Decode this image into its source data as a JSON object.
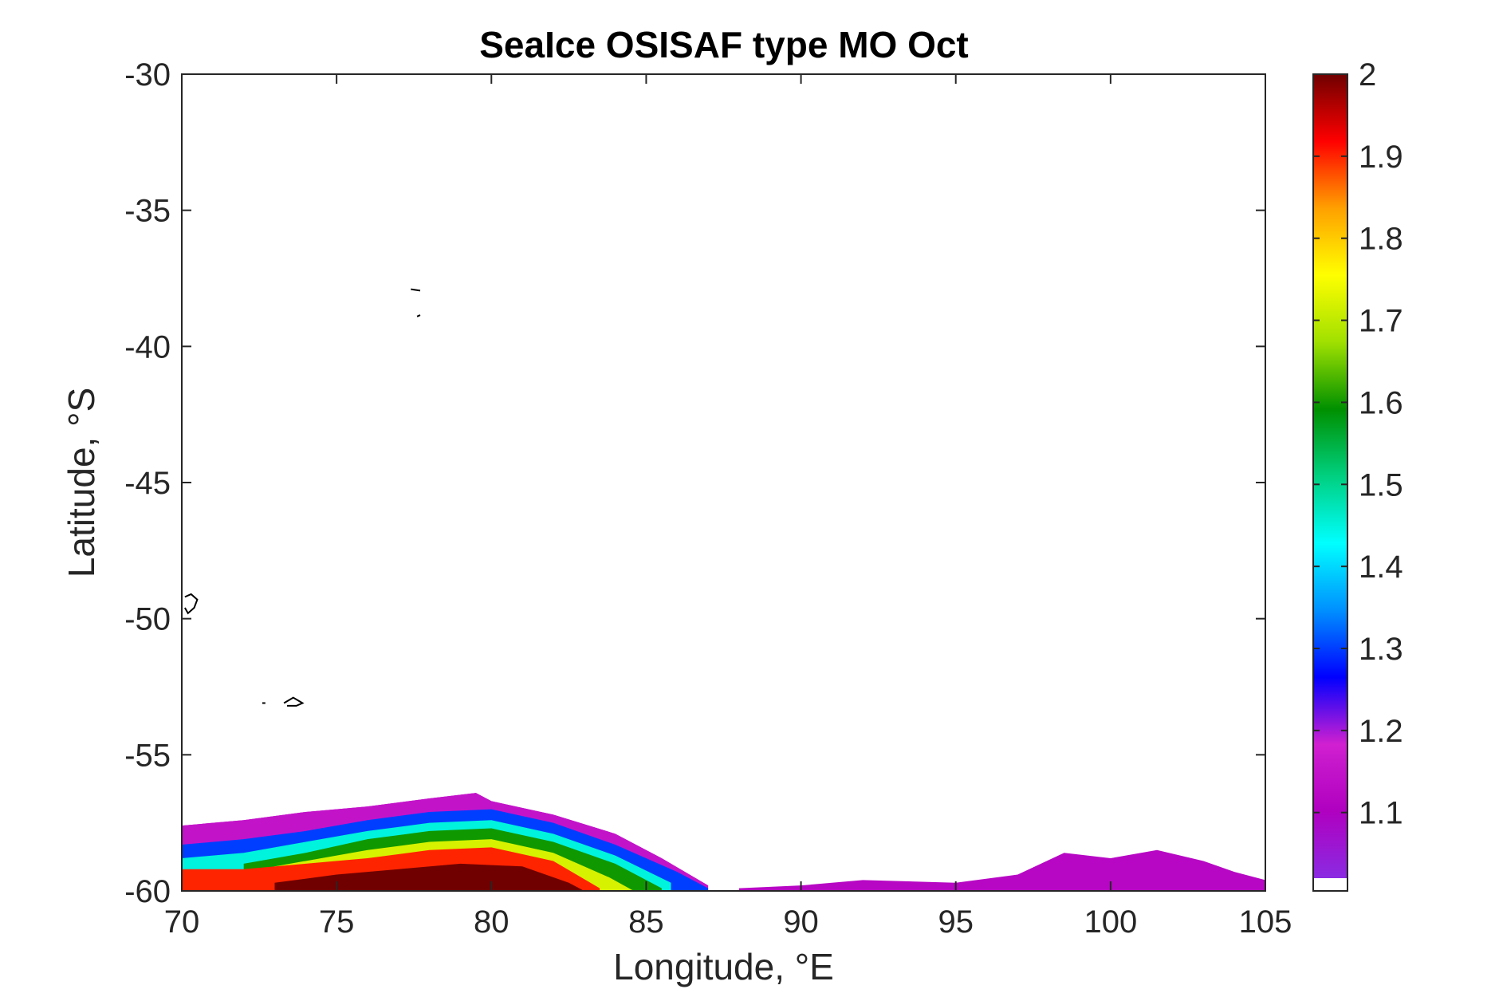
{
  "chart_data": {
    "type": "heatmap",
    "title": "SeaIce OSISAF type MO Oct",
    "xlabel": "Longitude, °E",
    "ylabel": "Latitude, °S",
    "xlim": [
      70,
      105
    ],
    "ylim": [
      -60,
      -30
    ],
    "x_ticks": [
      70,
      75,
      80,
      85,
      90,
      95,
      100,
      105
    ],
    "y_ticks": [
      -30,
      -35,
      -40,
      -45,
      -50,
      -55,
      -60
    ],
    "x_tick_labels": [
      "70",
      "75",
      "80",
      "85",
      "90",
      "95",
      "100",
      "105"
    ],
    "y_tick_labels": [
      "-30",
      "-35",
      "-40",
      "-45",
      "-50",
      "-55",
      "-60"
    ],
    "grid": false,
    "colorbar": {
      "range": [
        1.02,
        2.0
      ],
      "ticks": [
        1.1,
        1.2,
        1.3,
        1.4,
        1.5,
        1.6,
        1.7,
        1.8,
        1.9,
        2.0
      ],
      "tick_labels": [
        "1.1",
        "1.2",
        "1.3",
        "1.4",
        "1.5",
        "1.6",
        "1.7",
        "1.8",
        "1.9",
        "2"
      ],
      "colormap": [
        "#8a2be2",
        "#b000c0",
        "#d020d0",
        "#0000ff",
        "#0090ff",
        "#00ffff",
        "#00d080",
        "#009000",
        "#a0e000",
        "#ffff00",
        "#ffa000",
        "#ff0000",
        "#700000"
      ],
      "no_data_color": "#ffffff"
    },
    "ice_edges": [
      {
        "name": "",
        "points": [
          [
            70,
            -57.6
          ],
          [
            72,
            -57.4
          ],
          [
            74,
            -57.1
          ],
          [
            76,
            -56.9
          ],
          [
            78,
            -56.6
          ],
          [
            79.5,
            -56.4
          ],
          [
            80,
            -56.7
          ],
          [
            82,
            -57.2
          ],
          [
            84,
            -57.9
          ],
          [
            85.5,
            -58.8
          ],
          [
            87,
            -59.8
          ]
        ]
      },
      {
        "name": "",
        "points": [
          [
            88,
            -59.9
          ],
          [
            90,
            -59.8
          ],
          [
            92,
            -59.6
          ],
          [
            95,
            -59.7
          ],
          [
            97,
            -59.4
          ],
          [
            98.5,
            -58.6
          ],
          [
            100,
            -58.8
          ],
          [
            101.5,
            -58.5
          ],
          [
            103,
            -58.9
          ],
          [
            104,
            -59.3
          ],
          [
            105,
            -59.6
          ]
        ]
      }
    ],
    "ice_bands": [
      {
        "value": 1.15,
        "points": [
          [
            70,
            -57.6
          ],
          [
            72,
            -57.4
          ],
          [
            74,
            -57.1
          ],
          [
            76,
            -56.9
          ],
          [
            78,
            -56.6
          ],
          [
            79.5,
            -56.4
          ],
          [
            80,
            -56.7
          ],
          [
            82,
            -57.2
          ],
          [
            84,
            -57.9
          ],
          [
            85.5,
            -58.8
          ],
          [
            87,
            -59.8
          ]
        ]
      },
      {
        "value": 1.3,
        "points": [
          [
            70,
            -58.3
          ],
          [
            72,
            -58.1
          ],
          [
            74,
            -57.8
          ],
          [
            76,
            -57.4
          ],
          [
            78,
            -57.1
          ],
          [
            80,
            -57.0
          ],
          [
            82,
            -57.5
          ],
          [
            84,
            -58.3
          ],
          [
            86,
            -59.3
          ],
          [
            87,
            -59.9
          ]
        ]
      },
      {
        "value": 1.45,
        "points": [
          [
            70,
            -58.8
          ],
          [
            72,
            -58.6
          ],
          [
            74,
            -58.2
          ],
          [
            76,
            -57.8
          ],
          [
            78,
            -57.5
          ],
          [
            80,
            -57.4
          ],
          [
            82,
            -57.9
          ],
          [
            84,
            -58.7
          ],
          [
            85.8,
            -59.7
          ]
        ]
      },
      {
        "value": 1.6,
        "points": [
          [
            72,
            -59.0
          ],
          [
            74,
            -58.6
          ],
          [
            76,
            -58.1
          ],
          [
            78,
            -57.8
          ],
          [
            80,
            -57.7
          ],
          [
            82,
            -58.2
          ],
          [
            84,
            -59.0
          ],
          [
            85.5,
            -59.9
          ]
        ]
      },
      {
        "value": 1.72,
        "points": [
          [
            72,
            -59.3
          ],
          [
            74,
            -58.9
          ],
          [
            76,
            -58.5
          ],
          [
            78,
            -58.2
          ],
          [
            80,
            -58.1
          ],
          [
            82,
            -58.6
          ],
          [
            83.8,
            -59.5
          ],
          [
            84.6,
            -60
          ]
        ]
      },
      {
        "value": 1.9,
        "points": [
          [
            70,
            -59.2
          ],
          [
            72,
            -59.2
          ],
          [
            74,
            -59.0
          ],
          [
            76,
            -58.8
          ],
          [
            78,
            -58.5
          ],
          [
            80,
            -58.4
          ],
          [
            82,
            -58.9
          ],
          [
            83.5,
            -59.9
          ]
        ]
      },
      {
        "value": 2.0,
        "points": [
          [
            73,
            -59.7
          ],
          [
            75,
            -59.4
          ],
          [
            77,
            -59.2
          ],
          [
            79,
            -59.0
          ],
          [
            81,
            -59.1
          ],
          [
            82.5,
            -59.7
          ],
          [
            83,
            -60
          ]
        ]
      }
    ],
    "coast_contours": [
      [
        [
          77.4,
          -37.9
        ],
        [
          77.7,
          -37.95
        ]
      ],
      [
        [
          77.6,
          -38.9
        ],
        [
          77.7,
          -38.85
        ]
      ],
      [
        [
          70.1,
          -49.2
        ],
        [
          70.3,
          -49.1
        ],
        [
          70.5,
          -49.3
        ],
        [
          70.4,
          -49.6
        ],
        [
          70.2,
          -49.8
        ],
        [
          70.1,
          -49.6
        ]
      ],
      [
        [
          72.6,
          -53.1
        ],
        [
          72.7,
          -53.1
        ]
      ],
      [
        [
          73.3,
          -53.1
        ],
        [
          73.6,
          -52.9
        ],
        [
          73.9,
          -53.1
        ],
        [
          73.7,
          -53.2
        ],
        [
          73.4,
          -53.2
        ]
      ]
    ]
  }
}
